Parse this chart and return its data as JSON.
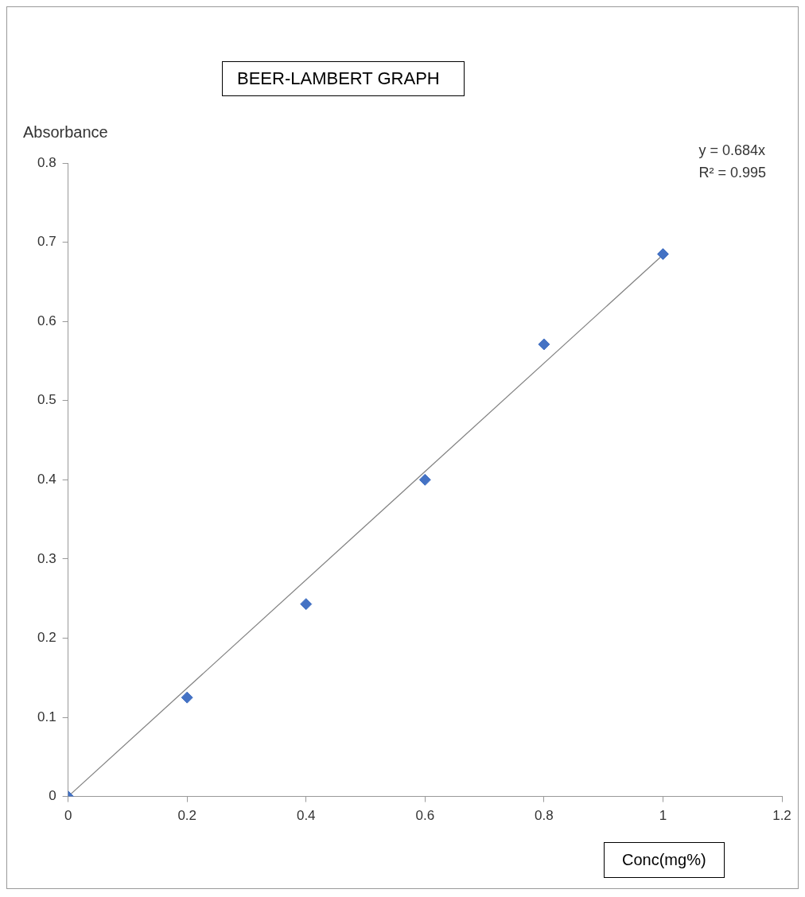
{
  "chart_data": {
    "type": "scatter",
    "title": "BEER-LAMBERT GRAPH",
    "xlabel": "Conc(mg%)",
    "ylabel": "Absorbance",
    "annotations": [
      "y = 0.684x",
      "R² = 0.995"
    ],
    "x": [
      0,
      0.2,
      0.4,
      0.6,
      0.8,
      1
    ],
    "series": [
      {
        "color": "#4472c4",
        "values": [
          0,
          0.125,
          0.243,
          0.4,
          0.571,
          0.685
        ],
        "marker": "diamond"
      },
      {
        "type": "line",
        "color": "#808080",
        "x": [
          0,
          1
        ],
        "values": [
          0,
          0.684
        ],
        "marker": "none"
      }
    ],
    "xlim": [
      0,
      1.2
    ],
    "xticks": [
      0,
      0.2,
      0.4,
      0.6,
      0.8,
      1,
      1.2
    ],
    "ylim": [
      0,
      0.8
    ],
    "yticks": [
      0,
      0.1,
      0.2,
      0.3,
      0.4,
      0.5,
      0.6,
      0.7,
      0.8
    ],
    "grid": false,
    "legend": false
  }
}
